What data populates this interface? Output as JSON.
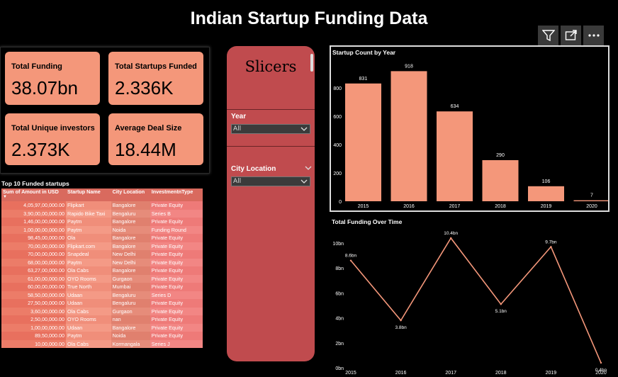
{
  "title": "Indian Startup Funding Data",
  "toolbar": [
    {
      "name": "filter-icon"
    },
    {
      "name": "focus-mode-icon"
    },
    {
      "name": "more-options-icon"
    }
  ],
  "kpis": {
    "total_funding": {
      "label": "Total Funding",
      "value": "38.07bn"
    },
    "total_startups": {
      "label": "Total Startups Funded",
      "value": "2.336K"
    },
    "unique_investors": {
      "label": "Total Unique investors",
      "value": "2.373K"
    },
    "avg_deal": {
      "label": "Average Deal Size",
      "value": "18.44M"
    }
  },
  "slicers": {
    "title": "Slicers",
    "year": {
      "label": "Year",
      "value": "All"
    },
    "city": {
      "label": "City Location",
      "value": "All"
    }
  },
  "table": {
    "title": "Top 10 Funded startups",
    "headers": [
      "Sum of Amount in USD",
      "Startup Name",
      "City Location",
      "InvestmentnType"
    ],
    "rows": [
      [
        "4,05,97,00,000.00",
        "Flipkart",
        "Bangalore",
        "Private Equity"
      ],
      [
        "3,90,00,00,000.00",
        "Rapido Bike Taxi",
        "Bengaluru",
        "Series B"
      ],
      [
        "1,46,00,00,000.00",
        "Paytm",
        "Bangalore",
        "Private Equity"
      ],
      [
        "1,00,00,00,000.00",
        "Paytm",
        "Noida",
        "Funding Round"
      ],
      [
        "98,45,00,000.00",
        "Ola",
        "Bangalore",
        "Private Equity"
      ],
      [
        "70,00,00,000.00",
        "Flipkart.com",
        "Bangalore",
        "Private Equity"
      ],
      [
        "70,00,00,000.00",
        "Snapdeal",
        "New Delhi",
        "Private Equity"
      ],
      [
        "68,00,00,000.00",
        "Paytm",
        "New Delhi",
        "Private Equity"
      ],
      [
        "63,27,00,000.00",
        "Ola Cabs",
        "Bangalore",
        "Private Equity"
      ],
      [
        "61,00,00,000.00",
        "OYO Rooms",
        "Gurgaon",
        "Private Equity"
      ],
      [
        "60,00,00,000.00",
        "True North",
        "Mumbai",
        "Private Equity"
      ],
      [
        "58,50,00,000.00",
        "Udaan",
        "Bengaluru",
        "Series D"
      ],
      [
        "27,50,00,000.00",
        "Udaan",
        "Bengaluru",
        "Private Equity"
      ],
      [
        "3,60,00,000.00",
        "Ola Cabs",
        "Gurgaon",
        "Private Equity"
      ],
      [
        "2,50,00,000.00",
        "OYO Rooms",
        "nan",
        "Private Equity"
      ],
      [
        "1,00,00,000.00",
        "Udaan",
        "Bangalore",
        "Private Equity"
      ],
      [
        "89,50,000.00",
        "Paytm",
        "Noida",
        "Private Equity"
      ],
      [
        "10,00,000.00",
        "Ola Cabs",
        "Kormangala",
        "Series J"
      ]
    ]
  },
  "chart_data": [
    {
      "type": "bar",
      "title": "Startup Count by Year",
      "categories": [
        "2015",
        "2016",
        "2017",
        "2018",
        "2019",
        "2020"
      ],
      "values": [
        831,
        918,
        634,
        290,
        106,
        7
      ],
      "data_labels": [
        "831",
        "918",
        "634",
        "290",
        "106",
        "7"
      ],
      "yticks": [
        "0",
        "200",
        "400",
        "600",
        "800"
      ],
      "ylim": [
        0,
        1000
      ],
      "color": "#F4977A"
    },
    {
      "type": "line",
      "title": "Total Funding Over Time",
      "categories": [
        "2015",
        "2016",
        "2017",
        "2018",
        "2019",
        "2020"
      ],
      "values": [
        8.6,
        3.8,
        10.4,
        5.1,
        9.7,
        0.4
      ],
      "data_labels": [
        "8.6bn",
        "3.8bn",
        "10.4bn",
        "5.1bn",
        "9.7bn",
        "0.4bn"
      ],
      "yticks": [
        "0bn",
        "2bn",
        "4bn",
        "6bn",
        "8bn",
        "10bn"
      ],
      "ylim": [
        0,
        11
      ],
      "color": "#F4977A"
    }
  ]
}
